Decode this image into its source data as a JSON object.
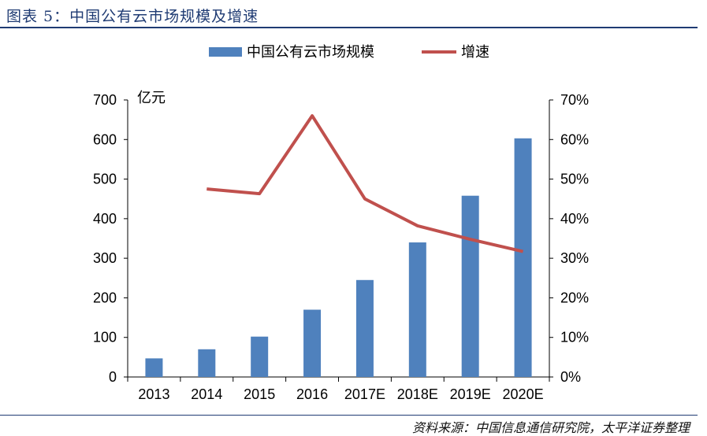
{
  "title": "图表 5：中国公有云市场规模及增速",
  "source": "资料来源：中国信息通信研究院，太平洋证券整理",
  "colors": {
    "bar": "#4f81bd",
    "line": "#c0504d",
    "rule": "#1f3b73"
  },
  "chart_data": {
    "type": "bar",
    "categories": [
      "2013",
      "2014",
      "2015",
      "2016",
      "2017E",
      "2018E",
      "2019E",
      "2020E"
    ],
    "series": [
      {
        "name": "中国公有云市场规模",
        "type": "bar",
        "axis": "left",
        "values": [
          47,
          70,
          102,
          170,
          245,
          340,
          458,
          603
        ]
      },
      {
        "name": "增速",
        "type": "line",
        "axis": "right",
        "values": [
          null,
          47.5,
          46.3,
          66.0,
          45.0,
          38.2,
          34.8,
          31.7
        ]
      }
    ],
    "ylabel_left": "亿元",
    "ylim_left": [
      0,
      700
    ],
    "yticks_left": [
      "0",
      "100",
      "200",
      "300",
      "400",
      "500",
      "600",
      "700"
    ],
    "ylim_right": [
      0,
      70
    ],
    "yticks_right": [
      "0%",
      "10%",
      "20%",
      "30%",
      "40%",
      "50%",
      "60%",
      "70%"
    ],
    "legend": "top-center",
    "grid": false
  }
}
